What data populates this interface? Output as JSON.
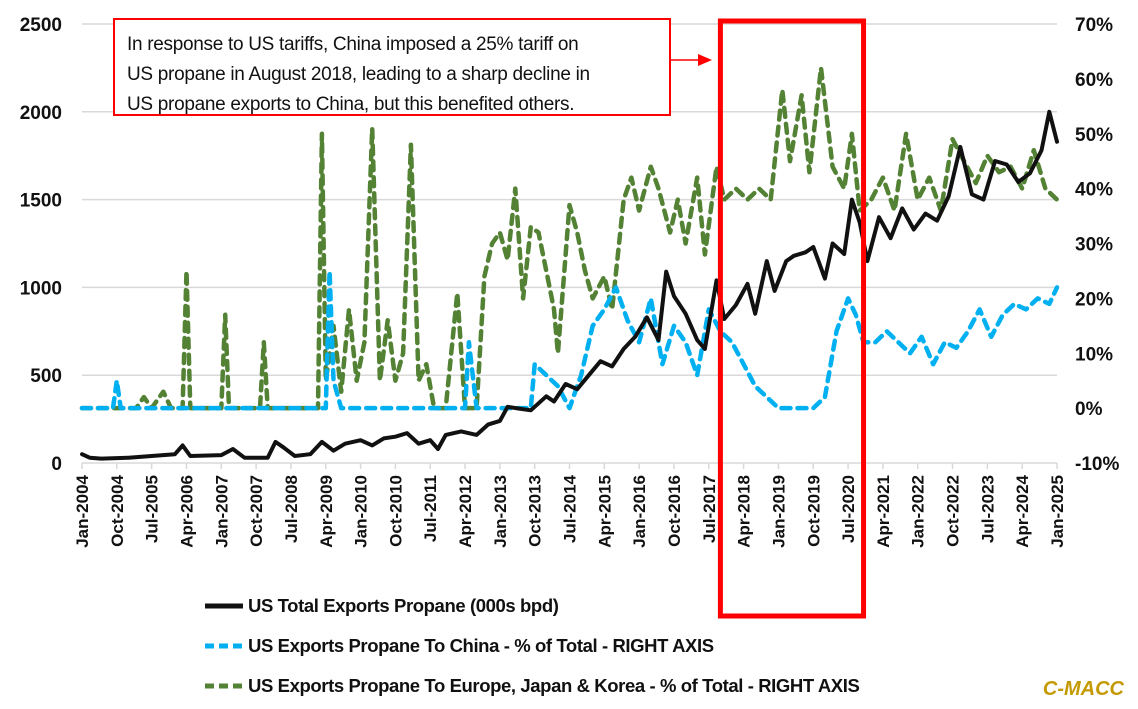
{
  "chart_data": {
    "type": "line",
    "title": "",
    "xlabel": "",
    "ylabel_left": "",
    "ylabel_right": "",
    "left_axis": {
      "min": 0,
      "max": 2500,
      "step": 500,
      "ticks": [
        "0",
        "500",
        "1000",
        "1500",
        "2000",
        "2500"
      ]
    },
    "right_axis": {
      "min": -10,
      "max": 70,
      "step": 10,
      "ticks": [
        "-10%",
        "0%",
        "10%",
        "20%",
        "30%",
        "40%",
        "50%",
        "60%",
        "70%"
      ]
    },
    "x_range": [
      "Jan-2004",
      "Jan-2025"
    ],
    "x_tick_labels": [
      "Jan-2004",
      "Oct-2004",
      "Jul-2005",
      "Apr-2006",
      "Jan-2007",
      "Oct-2007",
      "Jul-2008",
      "Apr-2009",
      "Jan-2010",
      "Oct-2010",
      "Jul-2011",
      "Apr-2012",
      "Jan-2013",
      "Oct-2013",
      "Jul-2014",
      "Apr-2015",
      "Jan-2016",
      "Oct-2016",
      "Jul-2017",
      "Apr-2018",
      "Jan-2019",
      "Oct-2019",
      "Jul-2020",
      "Apr-2021",
      "Jan-2022",
      "Oct-2022",
      "Jul-2023",
      "Apr-2024",
      "Jan-2025"
    ],
    "grid": "horizontal",
    "legend_position": "bottom",
    "series": [
      {
        "name": "US Total Exports Propane (000s bpd)",
        "axis": "left",
        "color": "#111111",
        "style": "solid",
        "points": [
          [
            "Jan-2004",
            50
          ],
          [
            "Mar-2004",
            30
          ],
          [
            "Jun-2004",
            25
          ],
          [
            "Jan-2005",
            30
          ],
          [
            "Jul-2005",
            40
          ],
          [
            "Jan-2006",
            50
          ],
          [
            "Mar-2006",
            100
          ],
          [
            "May-2006",
            40
          ],
          [
            "Jan-2007",
            45
          ],
          [
            "Apr-2007",
            80
          ],
          [
            "Jul-2007",
            30
          ],
          [
            "Jan-2008",
            30
          ],
          [
            "Mar-2008",
            120
          ],
          [
            "May-2008",
            90
          ],
          [
            "Aug-2008",
            40
          ],
          [
            "Dec-2008",
            50
          ],
          [
            "Mar-2009",
            120
          ],
          [
            "Jun-2009",
            70
          ],
          [
            "Sep-2009",
            110
          ],
          [
            "Jan-2010",
            130
          ],
          [
            "Apr-2010",
            100
          ],
          [
            "Jul-2010",
            140
          ],
          [
            "Oct-2010",
            150
          ],
          [
            "Jan-2011",
            170
          ],
          [
            "Apr-2011",
            110
          ],
          [
            "Jul-2011",
            130
          ],
          [
            "Sep-2011",
            80
          ],
          [
            "Nov-2011",
            160
          ],
          [
            "Mar-2012",
            180
          ],
          [
            "Jul-2012",
            160
          ],
          [
            "Oct-2012",
            220
          ],
          [
            "Jan-2013",
            240
          ],
          [
            "Mar-2013",
            320
          ],
          [
            "Jun-2013",
            310
          ],
          [
            "Sep-2013",
            300
          ],
          [
            "Jan-2014",
            380
          ],
          [
            "Mar-2014",
            350
          ],
          [
            "Jun-2014",
            450
          ],
          [
            "Sep-2014",
            420
          ],
          [
            "Dec-2014",
            500
          ],
          [
            "Mar-2015",
            580
          ],
          [
            "Jun-2015",
            550
          ],
          [
            "Sep-2015",
            650
          ],
          [
            "Dec-2015",
            720
          ],
          [
            "Mar-2016",
            830
          ],
          [
            "Jun-2016",
            700
          ],
          [
            "Aug-2016",
            1090
          ],
          [
            "Oct-2016",
            950
          ],
          [
            "Jan-2017",
            850
          ],
          [
            "Apr-2017",
            700
          ],
          [
            "Jun-2017",
            650
          ],
          [
            "Sep-2017",
            1040
          ],
          [
            "Nov-2017",
            820
          ],
          [
            "Feb-2018",
            900
          ],
          [
            "May-2018",
            1020
          ],
          [
            "Jul-2018",
            850
          ],
          [
            "Oct-2018",
            1150
          ],
          [
            "Dec-2018",
            980
          ],
          [
            "Mar-2019",
            1150
          ],
          [
            "May-2019",
            1180
          ],
          [
            "Aug-2019",
            1200
          ],
          [
            "Oct-2019",
            1230
          ],
          [
            "Jan-2020",
            1050
          ],
          [
            "Mar-2020",
            1250
          ],
          [
            "Jun-2020",
            1190
          ],
          [
            "Aug-2020",
            1500
          ],
          [
            "Oct-2020",
            1370
          ],
          [
            "Dec-2020",
            1150
          ],
          [
            "Mar-2021",
            1400
          ],
          [
            "Jun-2021",
            1280
          ],
          [
            "Sep-2021",
            1450
          ],
          [
            "Dec-2021",
            1330
          ],
          [
            "Mar-2022",
            1420
          ],
          [
            "Jun-2022",
            1380
          ],
          [
            "Sep-2022",
            1520
          ],
          [
            "Dec-2022",
            1800
          ],
          [
            "Mar-2023",
            1530
          ],
          [
            "Jun-2023",
            1500
          ],
          [
            "Sep-2023",
            1720
          ],
          [
            "Dec-2023",
            1700
          ],
          [
            "Mar-2024",
            1600
          ],
          [
            "Jun-2024",
            1650
          ],
          [
            "Sep-2024",
            1780
          ],
          [
            "Nov-2024",
            2000
          ],
          [
            "Jan-2025",
            1830
          ]
        ]
      },
      {
        "name": "US Exports Propane To China - % of Total - RIGHT AXIS",
        "axis": "right",
        "color": "#00b0f0",
        "style": "dashed",
        "points": [
          [
            "Jan-2004",
            0
          ],
          [
            "Sep-2004",
            0
          ],
          [
            "Oct-2004",
            5
          ],
          [
            "Nov-2004",
            0
          ],
          [
            "Apr-2009",
            0
          ],
          [
            "May-2009",
            25
          ],
          [
            "Jun-2009",
            5
          ],
          [
            "Aug-2009",
            0
          ],
          [
            "Jan-2011",
            0
          ],
          [
            "Apr-2012",
            0
          ],
          [
            "May-2012",
            12
          ],
          [
            "Jul-2012",
            0
          ],
          [
            "Sep-2013",
            0
          ],
          [
            "Oct-2013",
            8
          ],
          [
            "Jan-2014",
            6
          ],
          [
            "Apr-2014",
            4
          ],
          [
            "Jul-2014",
            0
          ],
          [
            "Oct-2014",
            6
          ],
          [
            "Jan-2015",
            15
          ],
          [
            "Apr-2015",
            18
          ],
          [
            "Jul-2015",
            22
          ],
          [
            "Oct-2015",
            16
          ],
          [
            "Jan-2016",
            12
          ],
          [
            "Apr-2016",
            20
          ],
          [
            "Jul-2016",
            8
          ],
          [
            "Oct-2016",
            15
          ],
          [
            "Jan-2017",
            12
          ],
          [
            "Apr-2017",
            6
          ],
          [
            "Jul-2017",
            18
          ],
          [
            "Oct-2017",
            14
          ],
          [
            "Jan-2018",
            12
          ],
          [
            "Apr-2018",
            8
          ],
          [
            "Jul-2018",
            4
          ],
          [
            "Oct-2018",
            2
          ],
          [
            "Jan-2019",
            0
          ],
          [
            "Apr-2019",
            0
          ],
          [
            "Jul-2019",
            0
          ],
          [
            "Oct-2019",
            0
          ],
          [
            "Jan-2020",
            2
          ],
          [
            "Apr-2020",
            14
          ],
          [
            "Jul-2020",
            20
          ],
          [
            "Sep-2020",
            17
          ],
          [
            "Nov-2020",
            12
          ],
          [
            "Feb-2021",
            12
          ],
          [
            "May-2021",
            14
          ],
          [
            "Aug-2021",
            12
          ],
          [
            "Nov-2021",
            10
          ],
          [
            "Feb-2022",
            13
          ],
          [
            "May-2022",
            8
          ],
          [
            "Aug-2022",
            12
          ],
          [
            "Nov-2022",
            11
          ],
          [
            "Feb-2023",
            14
          ],
          [
            "May-2023",
            18
          ],
          [
            "Aug-2023",
            13
          ],
          [
            "Nov-2023",
            17
          ],
          [
            "Feb-2024",
            19
          ],
          [
            "May-2024",
            18
          ],
          [
            "Aug-2024",
            20
          ],
          [
            "Nov-2024",
            19
          ],
          [
            "Jan-2025",
            22
          ]
        ]
      },
      {
        "name": "US Exports Propane To Europe, Japan & Korea - % of Total - RIGHT AXIS",
        "axis": "right",
        "color": "#548235",
        "style": "dashed",
        "points": [
          [
            "Jan-2004",
            0
          ],
          [
            "Mar-2005",
            0
          ],
          [
            "May-2005",
            2
          ],
          [
            "Jul-2005",
            0
          ],
          [
            "Oct-2005",
            3
          ],
          [
            "Dec-2005",
            0
          ],
          [
            "Mar-2006",
            0
          ],
          [
            "Apr-2006",
            25
          ],
          [
            "May-2006",
            0
          ],
          [
            "Jan-2007",
            0
          ],
          [
            "Feb-2007",
            17
          ],
          [
            "Mar-2007",
            0
          ],
          [
            "Nov-2007",
            0
          ],
          [
            "Dec-2007",
            12
          ],
          [
            "Jan-2008",
            0
          ],
          [
            "Feb-2009",
            0
          ],
          [
            "Mar-2009",
            50
          ],
          [
            "Apr-2009",
            5
          ],
          [
            "Jun-2009",
            15
          ],
          [
            "Aug-2009",
            3
          ],
          [
            "Oct-2009",
            18
          ],
          [
            "Dec-2009",
            5
          ],
          [
            "Feb-2010",
            12
          ],
          [
            "Apr-2010",
            51
          ],
          [
            "Jun-2010",
            5
          ],
          [
            "Aug-2010",
            16
          ],
          [
            "Oct-2010",
            5
          ],
          [
            "Dec-2010",
            10
          ],
          [
            "Feb-2011",
            48
          ],
          [
            "Apr-2011",
            5
          ],
          [
            "Jun-2011",
            8
          ],
          [
            "Aug-2011",
            0
          ],
          [
            "Nov-2011",
            0
          ],
          [
            "Feb-2012",
            21
          ],
          [
            "Apr-2012",
            0
          ],
          [
            "Jul-2012",
            0
          ],
          [
            "Sep-2012",
            24
          ],
          [
            "Nov-2012",
            30
          ],
          [
            "Jan-2013",
            32
          ],
          [
            "Mar-2013",
            27
          ],
          [
            "May-2013",
            40
          ],
          [
            "Jul-2013",
            20
          ],
          [
            "Sep-2013",
            33
          ],
          [
            "Nov-2013",
            32
          ],
          [
            "Jan-2014",
            25
          ],
          [
            "Mar-2014",
            18
          ],
          [
            "Apr-2014",
            10
          ],
          [
            "Jul-2014",
            37
          ],
          [
            "Sep-2014",
            32
          ],
          [
            "Nov-2014",
            25
          ],
          [
            "Jan-2015",
            20
          ],
          [
            "Apr-2015",
            24
          ],
          [
            "Jun-2015",
            18
          ],
          [
            "Sep-2015",
            38
          ],
          [
            "Nov-2015",
            42
          ],
          [
            "Jan-2016",
            36
          ],
          [
            "Apr-2016",
            44
          ],
          [
            "Jun-2016",
            40
          ],
          [
            "Sep-2016",
            32
          ],
          [
            "Nov-2016",
            38
          ],
          [
            "Jan-2017",
            30
          ],
          [
            "Apr-2017",
            42
          ],
          [
            "Jun-2017",
            28
          ],
          [
            "Sep-2017",
            44
          ],
          [
            "Nov-2017",
            38
          ],
          [
            "Feb-2018",
            40
          ],
          [
            "May-2018",
            38
          ],
          [
            "Aug-2018",
            40
          ],
          [
            "Nov-2018",
            38
          ],
          [
            "Feb-2019",
            58
          ],
          [
            "Apr-2019",
            45
          ],
          [
            "Jul-2019",
            57
          ],
          [
            "Sep-2019",
            43
          ],
          [
            "Dec-2019",
            62
          ],
          [
            "Mar-2020",
            44
          ],
          [
            "Jun-2020",
            40
          ],
          [
            "Aug-2020",
            50
          ],
          [
            "Oct-2020",
            36
          ],
          [
            "Jan-2021",
            38
          ],
          [
            "Apr-2021",
            42
          ],
          [
            "Jul-2021",
            36
          ],
          [
            "Oct-2021",
            50
          ],
          [
            "Jan-2022",
            38
          ],
          [
            "Apr-2022",
            42
          ],
          [
            "Jul-2022",
            36
          ],
          [
            "Oct-2022",
            49
          ],
          [
            "Jan-2023",
            45
          ],
          [
            "Apr-2023",
            41
          ],
          [
            "Jul-2023",
            46
          ],
          [
            "Oct-2023",
            43
          ],
          [
            "Jan-2024",
            44
          ],
          [
            "Apr-2024",
            40
          ],
          [
            "Jul-2024",
            47
          ],
          [
            "Oct-2024",
            40
          ],
          [
            "Jan-2025",
            38
          ]
        ]
      }
    ],
    "annotations": [
      {
        "type": "text-box",
        "text": "In response to US tariffs, China imposed a 25% tariff on US propane in August 2018, leading to a sharp decline in US propane exports to China, but this benefited others.",
        "border_color": "#ff0000"
      },
      {
        "type": "highlight-rectangle",
        "x_start": "Oct-2017",
        "x_end": "Nov-2020",
        "border_color": "#ff0000"
      }
    ],
    "watermark": "C-MACC"
  },
  "annotation": {
    "lines": [
      "In response to US tariffs, China imposed a 25% tariff on",
      "US propane in August 2018, leading to a sharp decline in",
      "US propane exports to China, but this benefited others."
    ]
  },
  "legend": [
    {
      "label": "US Total Exports Propane (000s bpd)",
      "color": "#111111",
      "style": "solid"
    },
    {
      "label": "US Exports Propane To China - % of Total - RIGHT AXIS",
      "color": "#00b0f0",
      "style": "dashed"
    },
    {
      "label": "US Exports Propane To Europe, Japan & Korea - % of Total - RIGHT AXIS",
      "color": "#548235",
      "style": "dashed"
    }
  ],
  "watermark": "C-MACC"
}
